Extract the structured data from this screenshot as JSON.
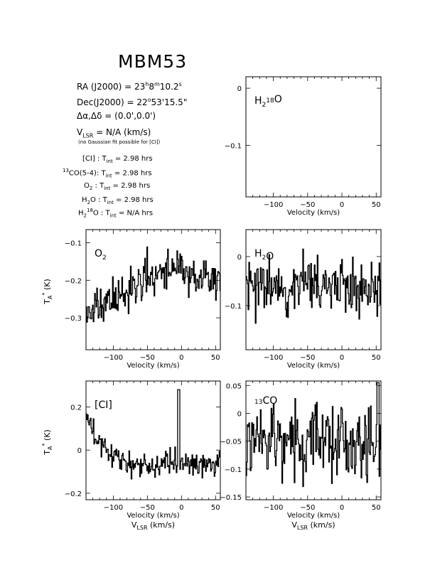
{
  "page_title": "MBM53",
  "header": {
    "ra": "RA (J2000) = 23h8m10.2s",
    "dec": "Dec(J2000) = 22°53'15.5\"",
    "offset": "Δα,Δδ = (0.0',0.0')",
    "vlsr": "VLSR = N/A (km/s)",
    "note": "(no Gaussian fit possible for [CI])",
    "tint": [
      {
        "line": "[CI] :",
        "value": "TInt = 2.98 hrs"
      },
      {
        "line": "13CO(5-4):",
        "value": "TInt = 2.98 hrs"
      },
      {
        "line": "O2 :",
        "value": "TInt = 2.98 hrs"
      },
      {
        "line": "H2O :",
        "value": "TInt = 2.98 hrs"
      },
      {
        "line": "H218O :",
        "value": "TInt = N/A hrs"
      }
    ]
  },
  "labels": {
    "xlabel": "Velocity (km/s)",
    "vlsr_label": "VLSR (km/s)",
    "ylabel": "TA* (K)"
  },
  "chart_data": [
    {
      "id": "h218o",
      "type": "line",
      "label": "H2 18O",
      "xlim": [
        -140,
        57
      ],
      "ylim": [
        -0.19,
        0.02
      ],
      "xticks": [
        -100,
        -50,
        0,
        50
      ],
      "yticks": [
        0,
        -0.1
      ],
      "values": []
    },
    {
      "id": "o2",
      "type": "line",
      "label": "O2",
      "xlim": [
        -140,
        57
      ],
      "ylim": [
        -0.385,
        -0.065
      ],
      "xticks": [
        -100,
        -50,
        0,
        50
      ],
      "yticks": [
        -0.1,
        -0.2,
        -0.3
      ],
      "seed": 11,
      "noise": 0.055,
      "baseline": [
        [
          -140,
          -0.29
        ],
        [
          -120,
          -0.27
        ],
        [
          -100,
          -0.25
        ],
        [
          -80,
          -0.23
        ],
        [
          -60,
          -0.2
        ],
        [
          -40,
          -0.18
        ],
        [
          -20,
          -0.17
        ],
        [
          0,
          -0.18
        ],
        [
          20,
          -0.19
        ],
        [
          40,
          -0.2
        ],
        [
          57,
          -0.21
        ]
      ]
    },
    {
      "id": "h2o",
      "type": "line",
      "label": "H2O",
      "xlim": [
        -140,
        57
      ],
      "ylim": [
        -0.19,
        0.055
      ],
      "xticks": [
        -100,
        -50,
        0,
        50
      ],
      "yticks": [
        0,
        -0.1
      ],
      "seed": 23,
      "noise": 0.06,
      "baseline": [
        [
          -140,
          -0.065
        ],
        [
          -100,
          -0.06
        ],
        [
          -50,
          -0.055
        ],
        [
          0,
          -0.055
        ],
        [
          57,
          -0.06
        ]
      ]
    },
    {
      "id": "ci",
      "type": "line",
      "label": "[CI]",
      "xlim": [
        -140,
        57
      ],
      "ylim": [
        -0.23,
        0.32
      ],
      "xticks": [
        -100,
        -50,
        0,
        50
      ],
      "yticks": [
        0.2,
        0,
        -0.2
      ],
      "seed": 37,
      "noise": 0.06,
      "baseline": [
        [
          -140,
          0.12
        ],
        [
          -125,
          0.05
        ],
        [
          -100,
          -0.02
        ],
        [
          -80,
          -0.06
        ],
        [
          -60,
          -0.07
        ],
        [
          -40,
          -0.07
        ],
        [
          -20,
          -0.06
        ],
        [
          0,
          -0.06
        ],
        [
          20,
          -0.06
        ],
        [
          57,
          -0.06
        ]
      ],
      "peaks": [
        [
          -5,
          0.28
        ]
      ]
    },
    {
      "id": "co13",
      "type": "line",
      "label": "13CO",
      "xlim": [
        -140,
        57
      ],
      "ylim": [
        -0.155,
        0.058
      ],
      "xticks": [
        -100,
        -50,
        0,
        50
      ],
      "yticks": [
        0.05,
        0,
        -0.05,
        -0.1,
        -0.15
      ],
      "seed": 51,
      "noise": 0.065,
      "baseline": [
        [
          -140,
          -0.06
        ],
        [
          -100,
          -0.05
        ],
        [
          -50,
          -0.05
        ],
        [
          0,
          -0.05
        ],
        [
          57,
          -0.05
        ]
      ],
      "peaks": [
        [
          52,
          0.055
        ]
      ]
    }
  ]
}
